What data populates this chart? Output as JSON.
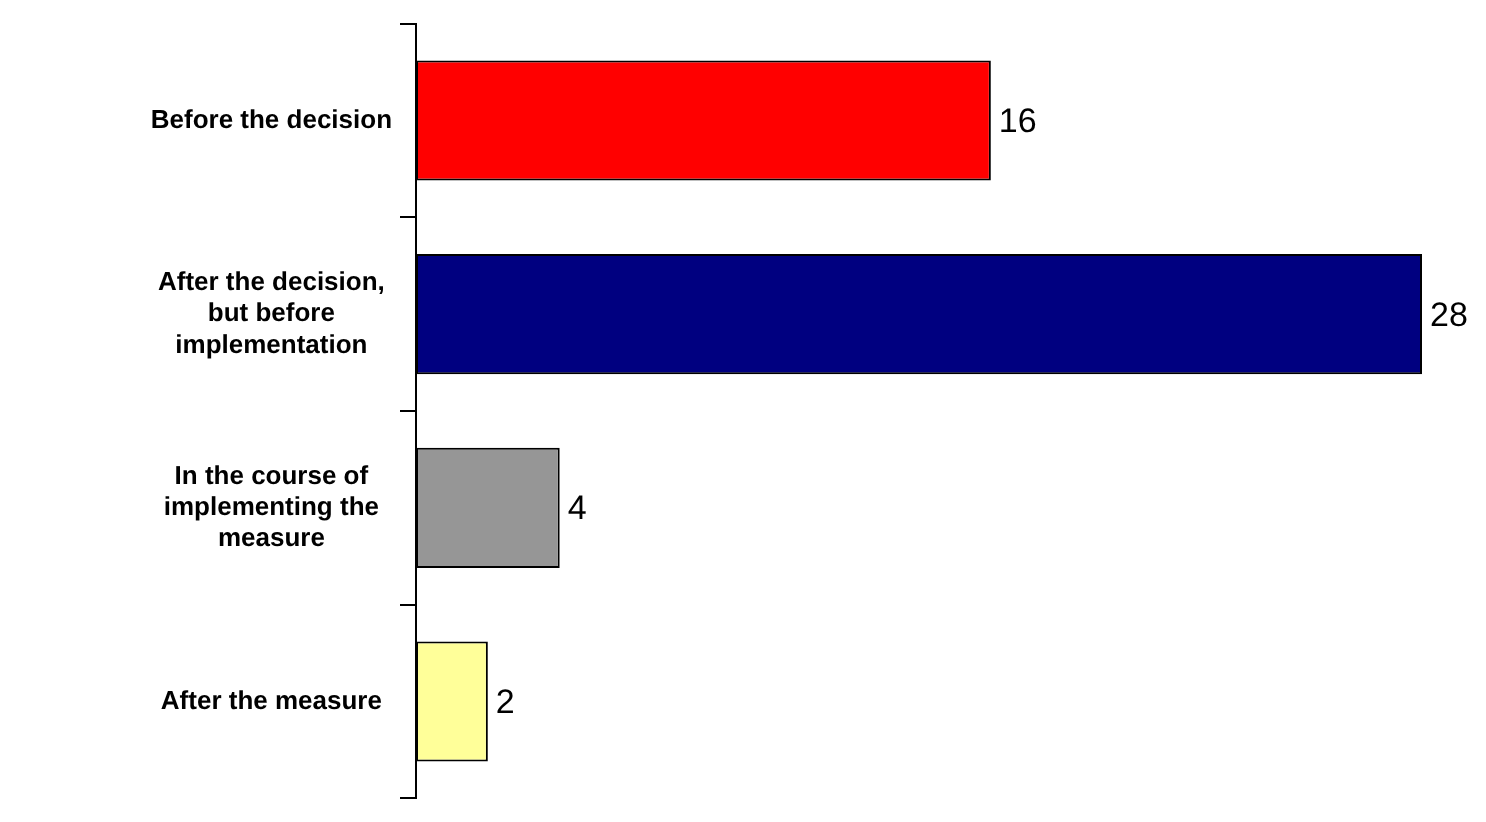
{
  "chart_data": {
    "type": "bar",
    "orientation": "horizontal",
    "categories": [
      "Before the decision",
      "After the decision, but before implementation",
      "In the course of implementing the measure",
      "After the measure"
    ],
    "values": [
      16,
      28,
      4,
      2
    ],
    "colors": [
      "#ff0000",
      "#000080",
      "#969696",
      "#ffff99"
    ],
    "data_labels": true,
    "legend": false
  }
}
